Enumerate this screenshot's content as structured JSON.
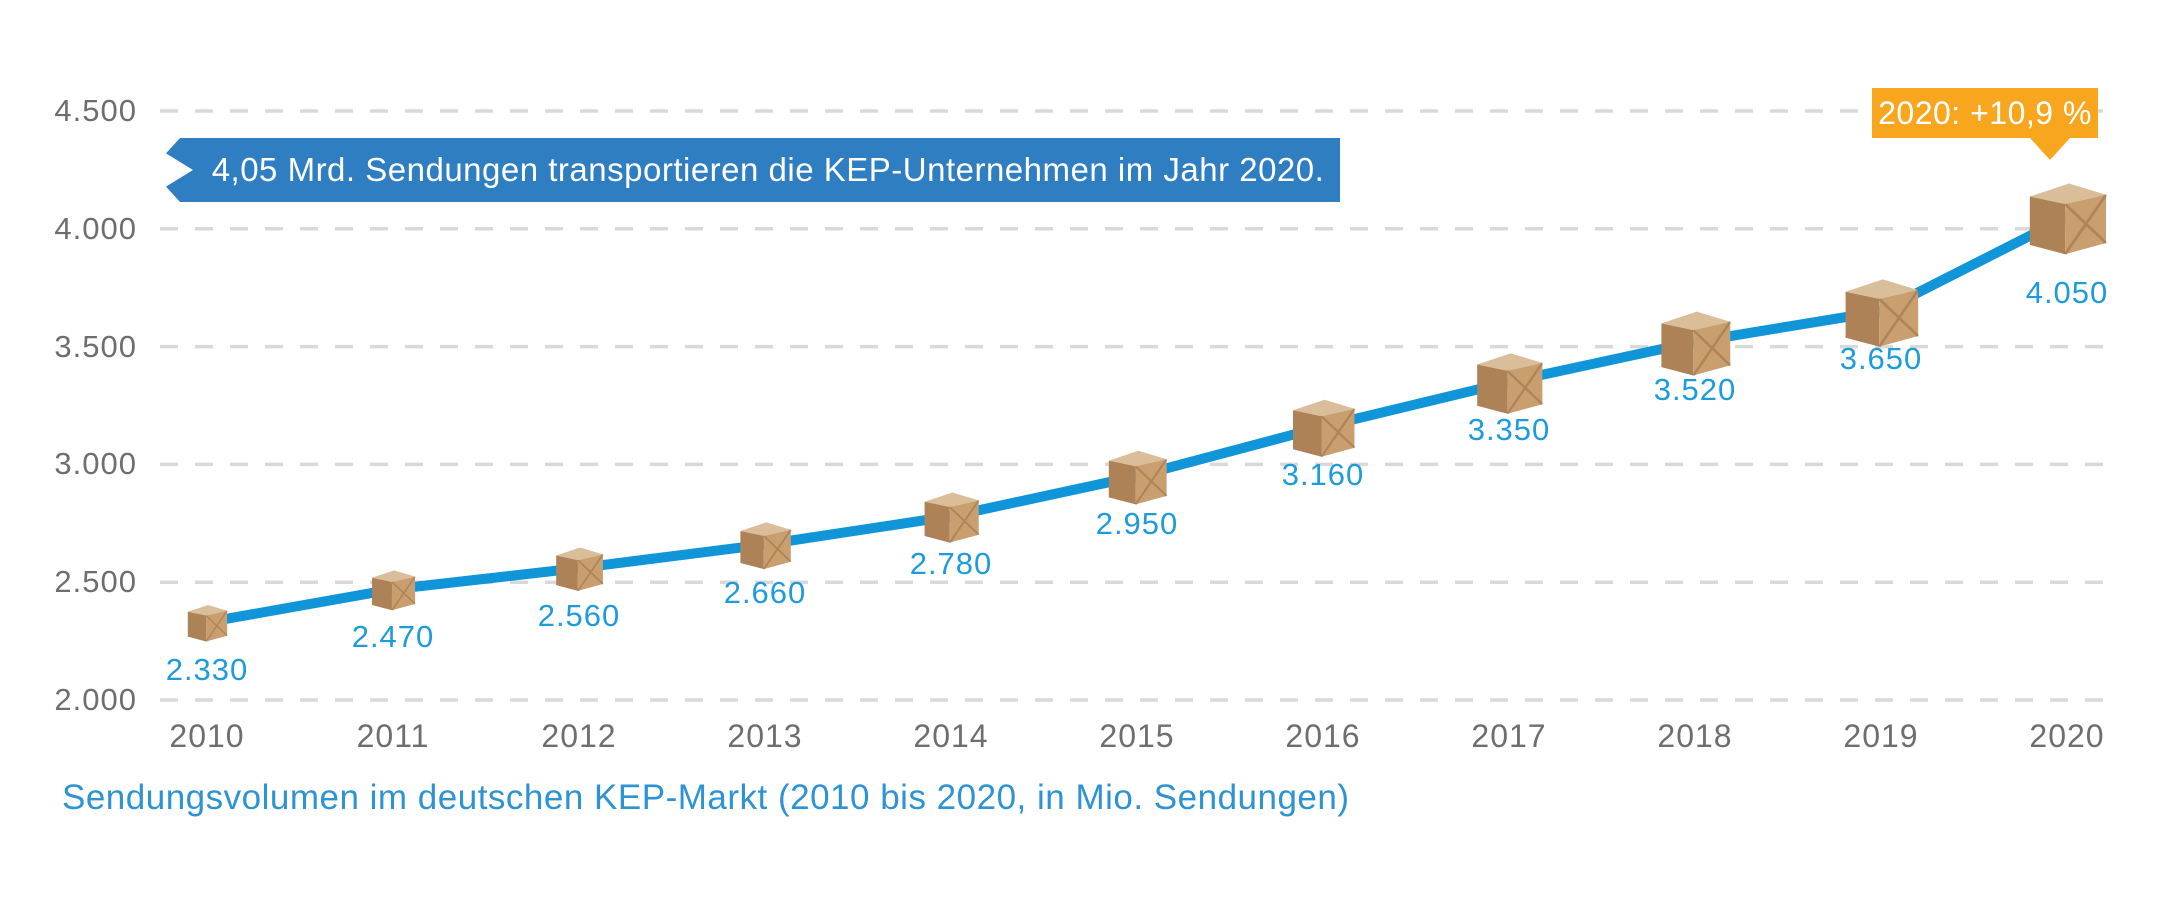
{
  "colors": {
    "line": "#1095D9",
    "point_label": "#1E9BDB",
    "banner_bg": "#2E7EC1",
    "badge_bg": "#F7A61E",
    "axis_text": "#6E6E6E",
    "gridline": "#D9D9D9",
    "caption_text": "#2E93D2",
    "box_top": "#DABE9A",
    "box_left": "#AE8257",
    "box_right": "#C99F70"
  },
  "chart_data": {
    "type": "line",
    "title": "Sendungsvolumen im deutschen KEP-Markt (2010 bis 2020, in Mio. Sendungen)",
    "xlabel": "",
    "ylabel": "",
    "unit": "Mio. Sendungen",
    "categories": [
      "2010",
      "2011",
      "2012",
      "2013",
      "2014",
      "2015",
      "2016",
      "2017",
      "2018",
      "2019",
      "2020"
    ],
    "values": [
      2330,
      2470,
      2560,
      2660,
      2780,
      2950,
      3160,
      3350,
      3520,
      3650,
      4050
    ],
    "value_labels": [
      "2.330",
      "2.470",
      "2.560",
      "2.660",
      "2.780",
      "2.950",
      "3.160",
      "3.350",
      "3.520",
      "3.650",
      "4.050"
    ],
    "y_ticks": [
      {
        "value": 2000,
        "label": "2.000"
      },
      {
        "value": 2500,
        "label": "2.500"
      },
      {
        "value": 3000,
        "label": "3.000"
      },
      {
        "value": 3500,
        "label": "3.500"
      },
      {
        "value": 4000,
        "label": "4.000"
      },
      {
        "value": 4500,
        "label": "4.500"
      }
    ],
    "ylim": [
      2000,
      4500
    ],
    "grid": "horizontal-dashed",
    "legend": "none",
    "marker_icon": "cardboard-parcel-box",
    "annotations": {
      "callout": "4,05 Mrd. Sendungen transportieren die KEP-Unternehmen im Jahr 2020.",
      "badge_2020": "2020: +10,9 %"
    }
  }
}
